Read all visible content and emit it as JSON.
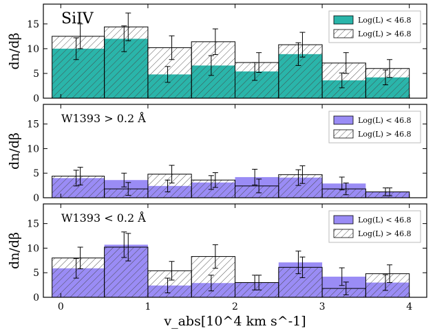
{
  "chart_data": [
    {
      "type": "bar",
      "annotation": "SiIV",
      "ylabel": "dn/dβ",
      "ylim": [
        0,
        19
      ],
      "yticks": [
        "0",
        "5",
        "10",
        "15"
      ],
      "bin_edges": [
        -0.1,
        0.5,
        1.0,
        1.5,
        2.0,
        2.5,
        3.0,
        3.5,
        4.0
      ],
      "legend_position": "top-right",
      "fill_color": "#2ab5aa",
      "series": [
        {
          "name": "Log(L) < 46.8",
          "style": "filled",
          "values": [
            10.0,
            12.0,
            4.8,
            6.6,
            5.4,
            8.9,
            3.6,
            4.2
          ],
          "errors": [
            2.2,
            2.6,
            1.6,
            2.0,
            1.8,
            2.3,
            1.5,
            1.5
          ]
        },
        {
          "name": "Log(L) > 46.8",
          "style": "hatched",
          "values": [
            12.5,
            14.4,
            10.2,
            11.4,
            7.2,
            10.8,
            7.1,
            6.0
          ],
          "errors": [
            2.5,
            2.8,
            2.4,
            2.6,
            2.0,
            2.5,
            2.1,
            1.8
          ]
        }
      ]
    },
    {
      "type": "bar",
      "annotation": "W1393 > 0.2 Å",
      "ylabel": "dn/dβ",
      "ylim": [
        0,
        19
      ],
      "yticks": [
        "0",
        "5",
        "10",
        "15"
      ],
      "bin_edges": [
        -0.1,
        0.5,
        1.0,
        1.5,
        2.0,
        2.5,
        3.0,
        3.5,
        4.0
      ],
      "legend_position": "top-right",
      "fill_color": "#9a8cf5",
      "series": [
        {
          "name": "Log(L) < 46.8",
          "style": "filled",
          "values": [
            4.0,
            3.6,
            2.4,
            3.1,
            4.2,
            4.1,
            2.9,
            1.2
          ],
          "errors": [
            1.6,
            1.4,
            1.2,
            1.4,
            1.6,
            1.6,
            1.3,
            0.8
          ]
        },
        {
          "name": "Log(L) > 46.8",
          "style": "hatched",
          "values": [
            4.4,
            1.8,
            4.8,
            3.6,
            2.4,
            4.7,
            1.8,
            1.2
          ],
          "errors": [
            1.8,
            1.3,
            1.8,
            1.5,
            1.4,
            1.8,
            1.2,
            0.8
          ]
        }
      ]
    },
    {
      "type": "bar",
      "annotation": "W1393 < 0.2 Å",
      "ylabel": "dn/dβ",
      "xlabel": "v_abs[10^4 km s^-1]",
      "ylim": [
        0,
        19
      ],
      "yticks": [
        "0",
        "5",
        "10",
        "15"
      ],
      "xticks": [
        "0",
        "1",
        "2",
        "3",
        "4"
      ],
      "bin_edges": [
        -0.1,
        0.5,
        1.0,
        1.5,
        2.0,
        2.5,
        3.0,
        3.5,
        4.0
      ],
      "legend_position": "top-right",
      "fill_color": "#9a8cf5",
      "series": [
        {
          "name": "Log(L) < 46.8",
          "style": "filled",
          "values": [
            5.9,
            10.7,
            2.4,
            2.9,
            3.0,
            7.1,
            4.2,
            3.0
          ],
          "errors": [
            2.0,
            2.6,
            1.5,
            1.6,
            1.5,
            2.3,
            1.8,
            1.6
          ]
        },
        {
          "name": "Log(L) > 46.8",
          "style": "hatched",
          "values": [
            8.0,
            10.2,
            5.4,
            8.3,
            3.0,
            6.1,
            1.8,
            4.8
          ],
          "errors": [
            2.2,
            2.8,
            1.9,
            2.4,
            1.5,
            2.1,
            1.3,
            1.8
          ]
        }
      ]
    }
  ]
}
